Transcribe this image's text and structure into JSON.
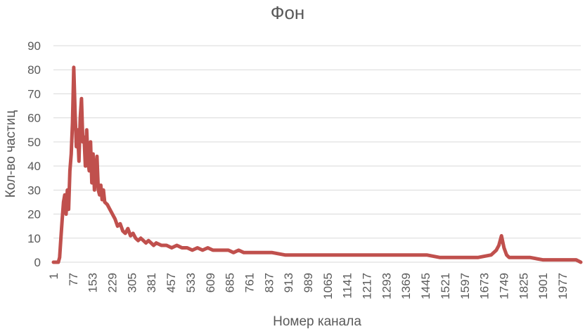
{
  "chart_data": {
    "type": "line",
    "title": "Фон",
    "xlabel": "Номер канала",
    "ylabel": "Кол-во частиц",
    "ylim": [
      0,
      90
    ],
    "yticks": [
      0,
      10,
      20,
      30,
      40,
      50,
      60,
      70,
      80,
      90
    ],
    "xlim": [
      1,
      2048
    ],
    "xticks": [
      "1",
      "77",
      "153",
      "229",
      "305",
      "381",
      "457",
      "533",
      "609",
      "685",
      "761",
      "837",
      "913",
      "989",
      "1065",
      "1141",
      "1217",
      "1293",
      "1369",
      "1445",
      "1521",
      "1597",
      "1673",
      "1749",
      "1825",
      "1901",
      "1977"
    ],
    "grid": true,
    "line_color": "#c0504d",
    "series": [
      {
        "x": [
          1,
          5,
          10,
          15,
          20,
          25,
          30,
          35,
          40,
          45,
          50,
          55,
          60,
          65,
          70,
          75,
          80,
          85,
          90,
          95,
          100,
          105,
          110,
          115,
          120,
          125,
          130,
          135,
          140,
          145,
          150,
          155,
          160,
          165,
          170,
          175,
          180,
          185,
          190,
          195,
          200,
          210,
          220,
          230,
          240,
          250,
          260,
          270,
          280,
          290,
          300,
          310,
          320,
          330,
          340,
          350,
          360,
          370,
          380,
          390,
          400,
          420,
          440,
          460,
          480,
          500,
          520,
          540,
          560,
          580,
          600,
          620,
          640,
          660,
          680,
          700,
          720,
          740,
          760,
          780,
          800,
          850,
          900,
          950,
          1000,
          1050,
          1100,
          1150,
          1200,
          1250,
          1300,
          1350,
          1400,
          1450,
          1500,
          1550,
          1600,
          1650,
          1700,
          1720,
          1730,
          1740,
          1750,
          1760,
          1770,
          1800,
          1850,
          1900,
          1950,
          2000,
          2030,
          2048
        ],
        "values": [
          0,
          0,
          0,
          0,
          0,
          2,
          10,
          18,
          25,
          28,
          20,
          30,
          22,
          38,
          45,
          58,
          81,
          62,
          48,
          55,
          42,
          60,
          68,
          50,
          52,
          40,
          55,
          42,
          38,
          50,
          33,
          45,
          30,
          36,
          44,
          30,
          28,
          32,
          26,
          30,
          25,
          24,
          22,
          20,
          18,
          15,
          16,
          13,
          12,
          14,
          11,
          12,
          10,
          9,
          10,
          9,
          8,
          9,
          8,
          7,
          8,
          7,
          7,
          6,
          7,
          6,
          6,
          5,
          6,
          5,
          6,
          5,
          5,
          5,
          5,
          4,
          5,
          4,
          4,
          4,
          4,
          4,
          3,
          3,
          3,
          3,
          3,
          3,
          3,
          3,
          3,
          3,
          3,
          3,
          2,
          2,
          2,
          2,
          3,
          5,
          7,
          11,
          6,
          3,
          2,
          2,
          2,
          1,
          1,
          1,
          1,
          0
        ]
      }
    ]
  }
}
